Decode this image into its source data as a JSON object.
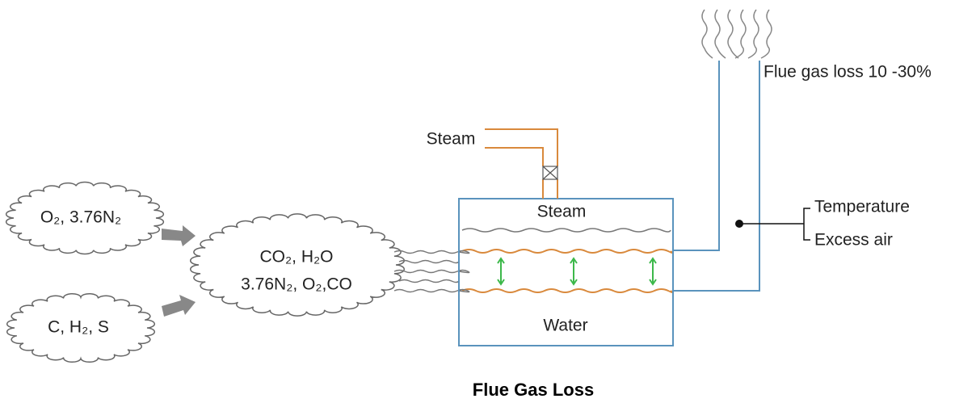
{
  "reactants": {
    "air": "O₂, 3.76N₂",
    "fuel": "C, H₂, S"
  },
  "products": {
    "line1": "CO₂, H₂O",
    "line2": "3.76N₂, O₂,CO"
  },
  "boiler": {
    "steam_outlet": "Steam",
    "steam": "Steam",
    "water": "Water"
  },
  "flue": {
    "label": "Flue gas loss 10 -30%",
    "factors": [
      "Temperature",
      "Excess air"
    ]
  },
  "title": "Flue Gas Loss"
}
